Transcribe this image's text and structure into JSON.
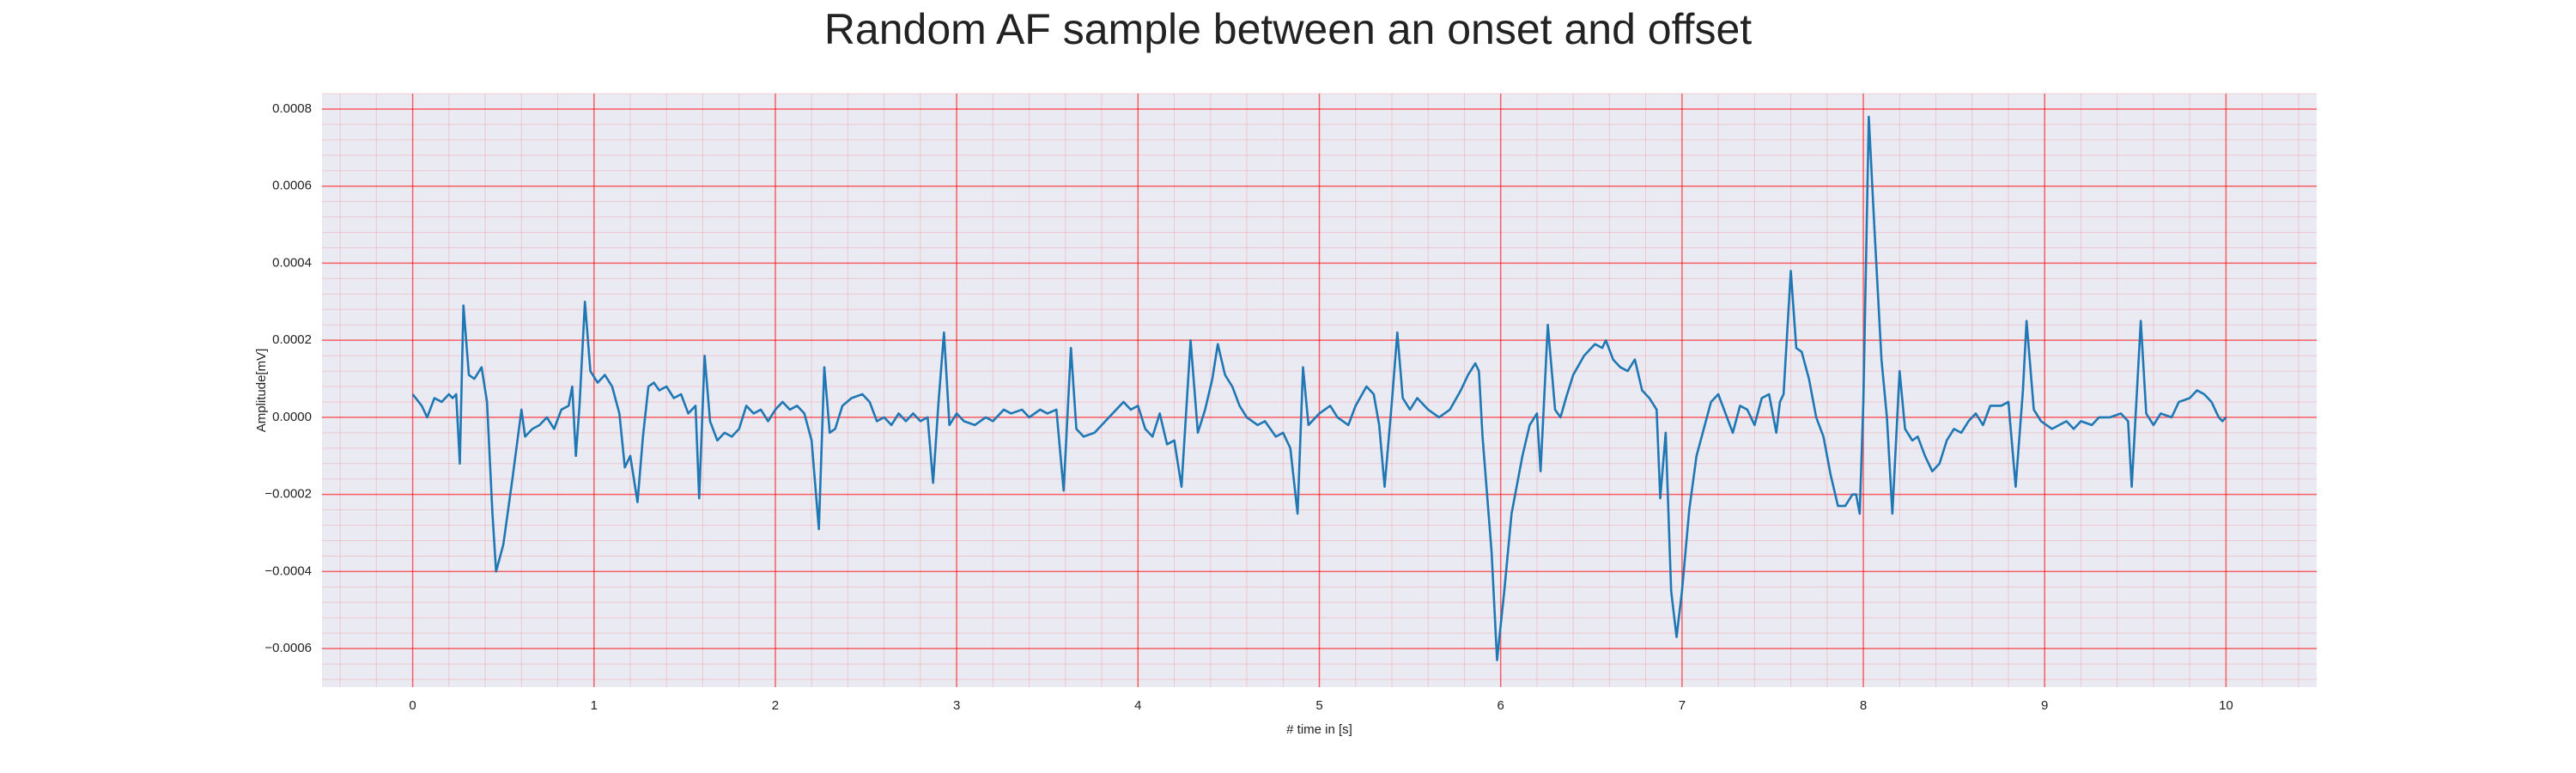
{
  "chart_data": {
    "type": "line",
    "title": "Random AF sample between an onset and offset",
    "xlabel": "# time in [s]",
    "ylabel": "Amplitude[mV]",
    "color": "#1f77b4",
    "background": "#eaeaf2",
    "grid": true,
    "grid_color": "#ff0000",
    "minor_grid": true,
    "minor_divisions": 5,
    "xlim": [
      -0.5,
      10.5
    ],
    "xticks": [
      0,
      1,
      2,
      3,
      4,
      5,
      6,
      7,
      8,
      9,
      10
    ],
    "ylim": [
      -0.0007,
      0.00084
    ],
    "yticks": [
      {
        "value": -0.0006,
        "label": "−0.0006"
      },
      {
        "value": -0.0004,
        "label": "−0.0004"
      },
      {
        "value": -0.0002,
        "label": "−0.0002"
      },
      {
        "value": 0,
        "label": "0.0000"
      },
      {
        "value": 0.0002,
        "label": "0.0002"
      },
      {
        "value": 0.0004,
        "label": "0.0004"
      },
      {
        "value": 0.0006,
        "label": "0.0006"
      },
      {
        "value": 0.0008,
        "label": "0.0008"
      }
    ],
    "x": [
      0,
      0.05,
      0.08,
      0.12,
      0.16,
      0.2,
      0.22,
      0.24,
      0.26,
      0.28,
      0.31,
      0.34,
      0.38,
      0.41,
      0.44,
      0.46,
      0.5,
      0.55,
      0.6,
      0.62,
      0.66,
      0.7,
      0.74,
      0.78,
      0.82,
      0.86,
      0.88,
      0.9,
      0.92,
      0.95,
      0.98,
      1.02,
      1.06,
      1.1,
      1.14,
      1.17,
      1.2,
      1.24,
      1.27,
      1.3,
      1.33,
      1.36,
      1.4,
      1.44,
      1.48,
      1.52,
      1.56,
      1.58,
      1.61,
      1.64,
      1.68,
      1.72,
      1.76,
      1.8,
      1.84,
      1.88,
      1.92,
      1.96,
      2.0,
      2.04,
      2.08,
      2.12,
      2.16,
      2.2,
      2.24,
      2.27,
      2.3,
      2.33,
      2.37,
      2.42,
      2.48,
      2.52,
      2.56,
      2.6,
      2.64,
      2.68,
      2.72,
      2.76,
      2.8,
      2.84,
      2.87,
      2.9,
      2.93,
      2.96,
      3.0,
      3.04,
      3.1,
      3.16,
      3.2,
      3.26,
      3.3,
      3.36,
      3.4,
      3.46,
      3.5,
      3.55,
      3.59,
      3.63,
      3.66,
      3.7,
      3.76,
      3.82,
      3.88,
      3.92,
      3.96,
      4.0,
      4.04,
      4.08,
      4.12,
      4.16,
      4.2,
      4.24,
      4.29,
      4.33,
      4.37,
      4.41,
      4.44,
      4.48,
      4.52,
      4.56,
      4.6,
      4.66,
      4.7,
      4.76,
      4.8,
      4.84,
      4.88,
      4.91,
      4.94,
      5.0,
      5.06,
      5.1,
      5.16,
      5.2,
      5.26,
      5.3,
      5.33,
      5.36,
      5.4,
      5.43,
      5.46,
      5.5,
      5.54,
      5.6,
      5.66,
      5.72,
      5.78,
      5.82,
      5.86,
      5.88,
      5.9,
      5.95,
      5.98,
      6.02,
      6.06,
      6.12,
      6.16,
      6.2,
      6.22,
      6.26,
      6.3,
      6.33,
      6.36,
      6.4,
      6.46,
      6.52,
      6.56,
      6.58,
      6.62,
      6.66,
      6.7,
      6.74,
      6.78,
      6.82,
      6.86,
      6.88,
      6.91,
      6.94,
      6.97,
      7.0,
      7.04,
      7.08,
      7.12,
      7.16,
      7.2,
      7.24,
      7.28,
      7.32,
      7.36,
      7.4,
      7.44,
      7.48,
      7.52,
      7.54,
      7.56,
      7.6,
      7.63,
      7.66,
      7.7,
      7.74,
      7.78,
      7.82,
      7.86,
      7.9,
      7.94,
      7.96,
      7.98,
      8.0,
      8.03,
      8.06,
      8.1,
      8.13,
      8.16,
      8.2,
      8.23,
      8.27,
      8.3,
      8.34,
      8.38,
      8.42,
      8.46,
      8.5,
      8.54,
      8.58,
      8.62,
      8.66,
      8.7,
      8.76,
      8.8,
      8.84,
      8.88,
      8.9,
      8.94,
      8.98,
      9.04,
      9.08,
      9.12,
      9.16,
      9.2,
      9.26,
      9.3,
      9.36,
      9.42,
      9.46,
      9.48,
      9.53,
      9.56,
      9.6,
      9.64,
      9.7,
      9.74,
      9.8,
      9.84,
      9.88,
      9.92,
      9.96,
      9.98,
      10.0
    ],
    "values": [
      6e-05,
      3e-05,
      0.0,
      5e-05,
      4e-05,
      6e-05,
      5e-05,
      6e-05,
      -0.00012,
      0.00029,
      0.00011,
      0.0001,
      0.00013,
      4e-05,
      -0.00025,
      -0.0004,
      -0.00033,
      -0.00016,
      2e-05,
      -5e-05,
      -3e-05,
      -2e-05,
      0.0,
      -3e-05,
      2e-05,
      3e-05,
      8e-05,
      -0.0001,
      3e-05,
      0.0003,
      0.00012,
      9e-05,
      0.00011,
      8e-05,
      1e-05,
      -0.00013,
      -0.0001,
      -0.00022,
      -5e-05,
      8e-05,
      9e-05,
      7e-05,
      8e-05,
      5e-05,
      6e-05,
      1e-05,
      3e-05,
      -0.00021,
      0.00016,
      -1e-05,
      -6e-05,
      -4e-05,
      -5e-05,
      -3e-05,
      3e-05,
      1e-05,
      2e-05,
      -1e-05,
      2e-05,
      4e-05,
      2e-05,
      3e-05,
      1e-05,
      -6e-05,
      -0.00029,
      0.00013,
      -4e-05,
      -3e-05,
      3e-05,
      5e-05,
      6e-05,
      4e-05,
      -1e-05,
      0.0,
      -2e-05,
      1e-05,
      -1e-05,
      1e-05,
      -1e-05,
      0.0,
      -0.00017,
      4e-05,
      0.00022,
      -2e-05,
      1e-05,
      -1e-05,
      -2e-05,
      0.0,
      -1e-05,
      2e-05,
      1e-05,
      2e-05,
      0.0,
      2e-05,
      1e-05,
      2e-05,
      -0.00019,
      0.00018,
      -3e-05,
      -5e-05,
      -4e-05,
      -1e-05,
      2e-05,
      4e-05,
      2e-05,
      3e-05,
      -3e-05,
      -5e-05,
      1e-05,
      -7e-05,
      -6e-05,
      -0.00018,
      0.0002,
      -4e-05,
      2e-05,
      0.0001,
      0.00019,
      0.00011,
      8e-05,
      3e-05,
      0.0,
      -2e-05,
      -1e-05,
      -5e-05,
      -4e-05,
      -8e-05,
      -0.00025,
      0.00013,
      -2e-05,
      1e-05,
      3e-05,
      0.0,
      -2e-05,
      3e-05,
      8e-05,
      6e-05,
      -2e-05,
      -0.00018,
      4e-05,
      0.00022,
      5e-05,
      2e-05,
      5e-05,
      2e-05,
      0.0,
      2e-05,
      7e-05,
      0.00011,
      0.00014,
      0.00012,
      -5e-05,
      -0.00035,
      -0.00063,
      -0.00045,
      -0.00025,
      -0.0001,
      -2e-05,
      1e-05,
      -0.00014,
      0.00024,
      2e-05,
      0.0,
      5e-05,
      0.00011,
      0.00016,
      0.00019,
      0.00018,
      0.0002,
      0.00015,
      0.00013,
      0.00012,
      0.00015,
      7e-05,
      5e-05,
      2e-05,
      -0.00021,
      -4e-05,
      -0.00045,
      -0.00057,
      -0.00045,
      -0.00024,
      -0.0001,
      -3e-05,
      4e-05,
      6e-05,
      1e-05,
      -4e-05,
      3e-05,
      2e-05,
      -2e-05,
      5e-05,
      6e-05,
      -4e-05,
      4e-05,
      6e-05,
      0.00038,
      0.00018,
      0.00017,
      0.0001,
      0.0,
      -5e-05,
      -0.00015,
      -0.00023,
      -0.00023,
      -0.0002,
      -0.0002,
      -0.00025,
      4e-05,
      0.00078,
      0.0005,
      0.00015,
      0.0,
      -0.00025,
      0.00012,
      -3e-05,
      -6e-05,
      -5e-05,
      -0.0001,
      -0.00014,
      -0.00012,
      -6e-05,
      -3e-05,
      -4e-05,
      -1e-05,
      1e-05,
      -2e-05,
      3e-05,
      3e-05,
      4e-05,
      -0.00018,
      7e-05,
      0.00025,
      2e-05,
      -1e-05,
      -3e-05,
      -2e-05,
      -1e-05,
      -3e-05,
      -1e-05,
      -2e-05,
      0.0,
      0.0,
      1e-05,
      -1e-05,
      -0.00018,
      0.00025,
      1e-05,
      -2e-05,
      1e-05,
      0.0,
      4e-05,
      5e-05,
      7e-05,
      6e-05,
      4e-05,
      0.0,
      -1e-05,
      0.0
    ]
  }
}
